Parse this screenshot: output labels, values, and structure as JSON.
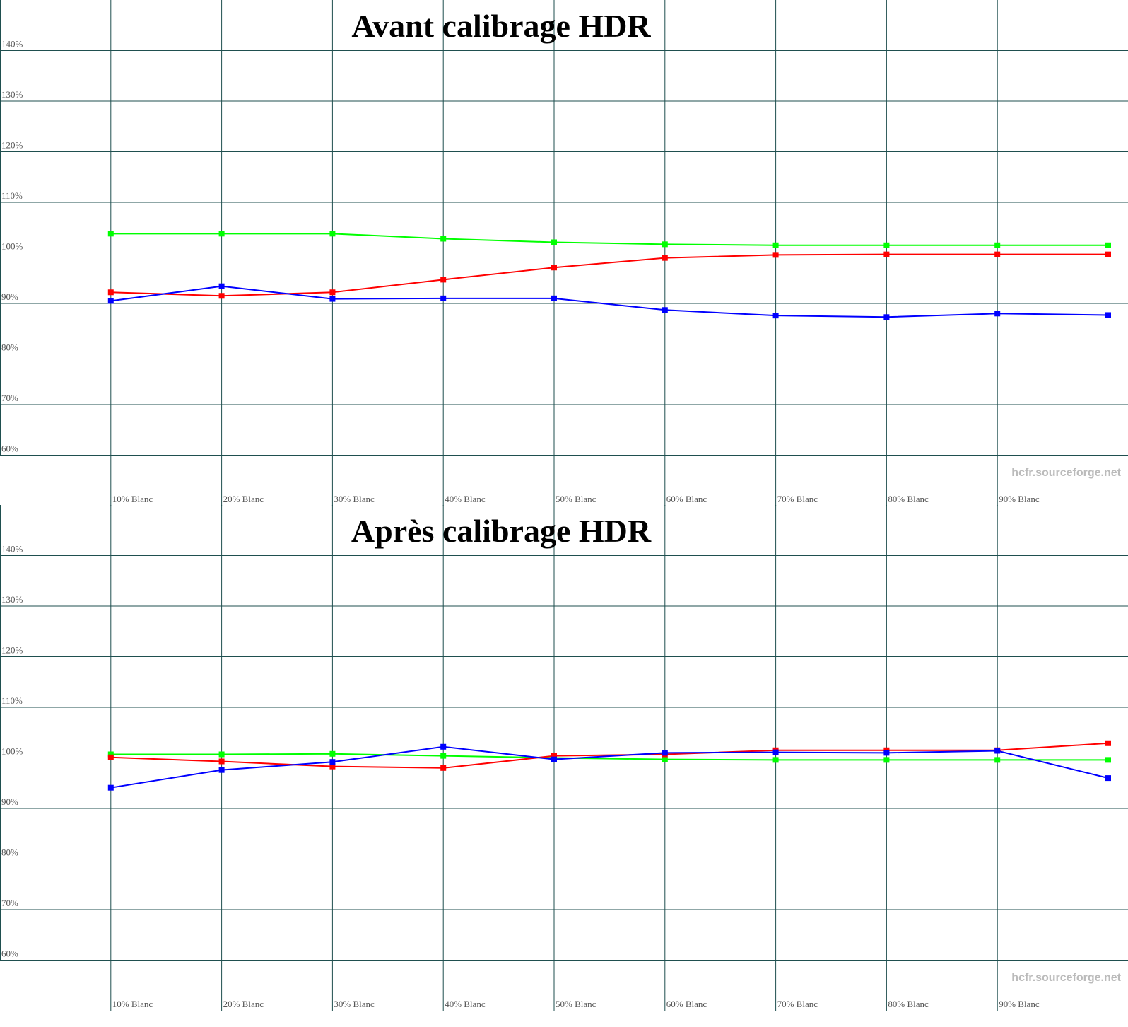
{
  "chart_data": [
    {
      "type": "line",
      "title": "Avant calibrage HDR",
      "watermark": "hcfr.sourceforge.net",
      "categories": [
        "10% Blanc",
        "20% Blanc",
        "30% Blanc",
        "40% Blanc",
        "50% Blanc",
        "60% Blanc",
        "70% Blanc",
        "80% Blanc",
        "90% Blanc",
        null
      ],
      "series": [
        {
          "color": "#00ff00",
          "values": [
            103.8,
            103.8,
            103.8,
            102.8,
            102.1,
            101.7,
            101.5,
            101.5,
            101.5,
            101.5
          ]
        },
        {
          "color": "#ff0000",
          "values": [
            92.2,
            91.5,
            92.2,
            94.7,
            97.1,
            99.0,
            99.6,
            99.7,
            99.7,
            99.7
          ]
        },
        {
          "color": "#0000ff",
          "values": [
            90.5,
            93.4,
            90.9,
            91.0,
            91.0,
            88.7,
            87.6,
            87.3,
            88.0,
            87.7
          ]
        }
      ],
      "ylim": [
        50,
        150
      ],
      "yticks": [
        {
          "value": 60,
          "label": "60%"
        },
        {
          "value": 70,
          "label": "70%"
        },
        {
          "value": 80,
          "label": "80%"
        },
        {
          "value": 90,
          "label": "90%"
        },
        {
          "value": 100,
          "label": "100%"
        },
        {
          "value": 110,
          "label": "110%"
        },
        {
          "value": 120,
          "label": "120%"
        },
        {
          "value": 130,
          "label": "130%"
        },
        {
          "value": 140,
          "label": "140%"
        }
      ],
      "reference": 100,
      "grid": true
    },
    {
      "type": "line",
      "title": "Après calibrage HDR",
      "watermark": "hcfr.sourceforge.net",
      "categories": [
        "10% Blanc",
        "20% Blanc",
        "30% Blanc",
        "40% Blanc",
        "50% Blanc",
        "60% Blanc",
        "70% Blanc",
        "80% Blanc",
        "90% Blanc",
        null
      ],
      "series": [
        {
          "color": "#00ff00",
          "values": [
            100.7,
            100.7,
            100.8,
            100.4,
            100.0,
            99.7,
            99.6,
            99.6,
            99.6,
            99.6
          ]
        },
        {
          "color": "#ff0000",
          "values": [
            100.1,
            99.3,
            98.3,
            98.0,
            100.4,
            100.7,
            101.5,
            101.5,
            101.5,
            102.9
          ]
        },
        {
          "color": "#0000ff",
          "values": [
            94.1,
            97.6,
            99.2,
            102.2,
            99.7,
            101.0,
            101.1,
            101.0,
            101.4,
            96.0
          ]
        }
      ],
      "ylim": [
        50,
        150
      ],
      "yticks": [
        {
          "value": 60,
          "label": "60%"
        },
        {
          "value": 70,
          "label": "70%"
        },
        {
          "value": 80,
          "label": "80%"
        },
        {
          "value": 90,
          "label": "90%"
        },
        {
          "value": 100,
          "label": "100%"
        },
        {
          "value": 110,
          "label": "110%"
        },
        {
          "value": 120,
          "label": "120%"
        },
        {
          "value": 130,
          "label": "130%"
        },
        {
          "value": 140,
          "label": "140%"
        }
      ],
      "reference": 100,
      "grid": true
    }
  ]
}
